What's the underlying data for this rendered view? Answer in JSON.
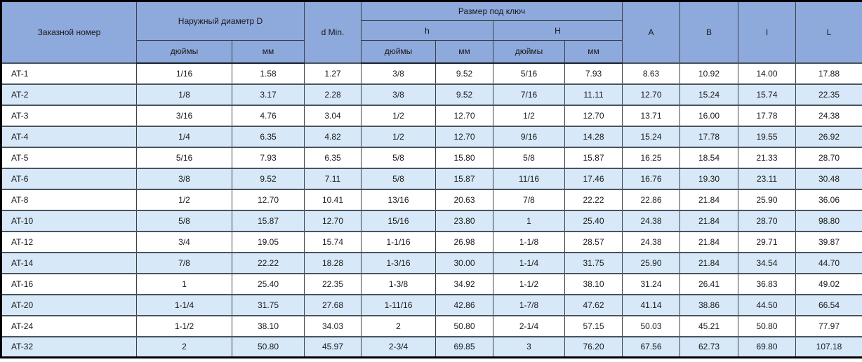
{
  "table": {
    "header": {
      "order_number": "Заказной номер",
      "outer_diameter": "Наружный диаметр D",
      "d_min": "d Min.",
      "wrench_size": "Размер под ключ",
      "h_small": "h",
      "h_big": "H",
      "inches": "дюймы",
      "mm": "мм",
      "col_a": "A",
      "col_b": "B",
      "col_i": "I",
      "col_l": "L"
    },
    "rows": [
      [
        "AT-1",
        "1/16",
        "1.58",
        "1.27",
        "3/8",
        "9.52",
        "5/16",
        "7.93",
        "8.63",
        "10.92",
        "14.00",
        "17.88"
      ],
      [
        "AT-2",
        "1/8",
        "3.17",
        "2.28",
        "3/8",
        "9.52",
        "7/16",
        "11.11",
        "12.70",
        "15.24",
        "15.74",
        "22.35"
      ],
      [
        "AT-3",
        "3/16",
        "4.76",
        "3.04",
        "1/2",
        "12.70",
        "1/2",
        "12.70",
        "13.71",
        "16.00",
        "17.78",
        "24.38"
      ],
      [
        "AT-4",
        "1/4",
        "6.35",
        "4.82",
        "1/2",
        "12.70",
        "9/16",
        "14.28",
        "15.24",
        "17.78",
        "19.55",
        "26.92"
      ],
      [
        "AT-5",
        "5/16",
        "7.93",
        "6.35",
        "5/8",
        "15.80",
        "5/8",
        "15.87",
        "16.25",
        "18.54",
        "21.33",
        "28.70"
      ],
      [
        "AT-6",
        "3/8",
        "9.52",
        "7.11",
        "5/8",
        "15.87",
        "11/16",
        "17.46",
        "16.76",
        "19.30",
        "23.11",
        "30.48"
      ],
      [
        "AT-8",
        "1/2",
        "12.70",
        "10.41",
        "13/16",
        "20.63",
        "7/8",
        "22.22",
        "22.86",
        "21.84",
        "25.90",
        "36.06"
      ],
      [
        "AT-10",
        "5/8",
        "15.87",
        "12.70",
        "15/16",
        "23.80",
        "1",
        "25.40",
        "24.38",
        "21.84",
        "28.70",
        "98.80"
      ],
      [
        "AT-12",
        "3/4",
        "19.05",
        "15.74",
        "1-1/16",
        "26.98",
        "1-1/8",
        "28.57",
        "24.38",
        "21.84",
        "29.71",
        "39.87"
      ],
      [
        "AT-14",
        "7/8",
        "22.22",
        "18.28",
        "1-3/16",
        "30.00",
        "1-1/4",
        "31.75",
        "25.90",
        "21.84",
        "34.54",
        "44.70"
      ],
      [
        "AT-16",
        "1",
        "25.40",
        "22.35",
        "1-3/8",
        "34.92",
        "1-1/2",
        "38.10",
        "31.24",
        "26.41",
        "36.83",
        "49.02"
      ],
      [
        "AT-20",
        "1-1/4",
        "31.75",
        "27.68",
        "1-11/16",
        "42.86",
        "1-7/8",
        "47.62",
        "41.14",
        "38.86",
        "44.50",
        "66.54"
      ],
      [
        "AT-24",
        "1-1/2",
        "38.10",
        "34.03",
        "2",
        "50.80",
        "2-1/4",
        "57.15",
        "50.03",
        "45.21",
        "50.80",
        "77.97"
      ],
      [
        "AT-32",
        "2",
        "50.80",
        "45.97",
        "2-3/4",
        "69.85",
        "3",
        "76.20",
        "67.56",
        "62.73",
        "69.80",
        "107.18"
      ]
    ]
  },
  "colors": {
    "header_bg": "#8EA9DB",
    "row_bg": "#FFFFFF",
    "row_alt_bg": "#D7E8F8",
    "border_inner": "#4A545E",
    "border_outer": "#000000"
  }
}
